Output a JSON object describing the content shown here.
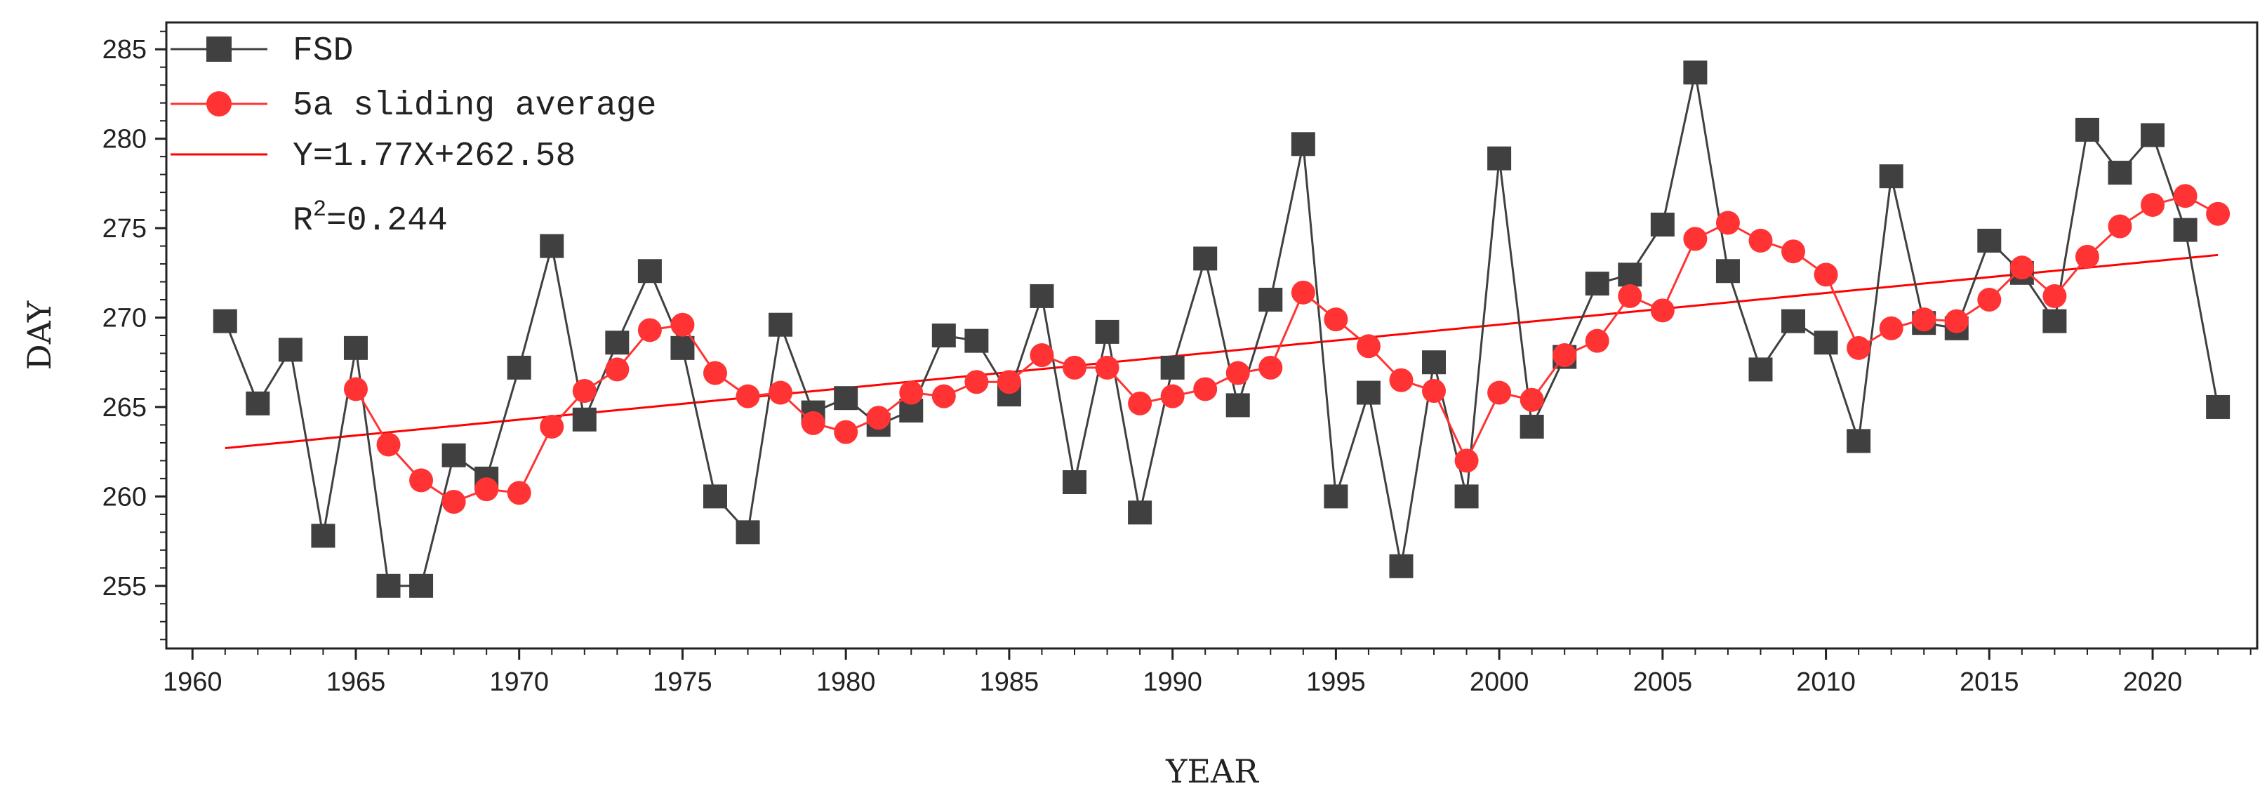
{
  "chart_data": {
    "type": "line",
    "title": "",
    "xlabel": "YEAR",
    "ylabel": "DAY",
    "xlim": [
      1959.2,
      2023.2
    ],
    "ylim": [
      251.5,
      286.5
    ],
    "x_ticks": [
      1960,
      1965,
      1970,
      1975,
      1980,
      1985,
      1990,
      1995,
      2000,
      2005,
      2010,
      2015,
      2020
    ],
    "y_ticks": [
      255,
      260,
      265,
      270,
      275,
      280,
      285
    ],
    "grid": false,
    "legend_position": "top-left",
    "x": [
      1961,
      1962,
      1963,
      1964,
      1965,
      1966,
      1967,
      1968,
      1969,
      1970,
      1971,
      1972,
      1973,
      1974,
      1975,
      1976,
      1977,
      1978,
      1979,
      1980,
      1981,
      1982,
      1983,
      1984,
      1985,
      1986,
      1987,
      1988,
      1989,
      1990,
      1991,
      1992,
      1993,
      1994,
      1995,
      1996,
      1997,
      1998,
      1999,
      2000,
      2001,
      2002,
      2003,
      2004,
      2005,
      2006,
      2007,
      2008,
      2009,
      2010,
      2011,
      2012,
      2013,
      2014,
      2015,
      2016,
      2017,
      2018,
      2019,
      2020,
      2021,
      2022
    ],
    "series": [
      {
        "name": "FSD",
        "color": "#404040",
        "marker": "square",
        "values": [
          269.8,
          265.2,
          268.2,
          257.8,
          268.3,
          255.0,
          255.0,
          262.3,
          261.0,
          267.2,
          274.0,
          264.3,
          268.6,
          272.6,
          268.3,
          260.0,
          258.0,
          269.6,
          264.7,
          265.5,
          264.0,
          264.8,
          269.0,
          268.7,
          265.7,
          271.2,
          260.8,
          269.2,
          259.1,
          267.2,
          273.3,
          265.1,
          271.0,
          279.7,
          260.0,
          265.8,
          256.1,
          267.5,
          260.0,
          278.9,
          263.9,
          267.8,
          271.9,
          272.4,
          275.2,
          283.7,
          272.6,
          267.1,
          269.8,
          268.6,
          263.1,
          277.9,
          269.7,
          269.4,
          274.3,
          272.5,
          269.8,
          280.5,
          278.1,
          280.2,
          274.9,
          265.0
        ]
      },
      {
        "name": "5a sliding average",
        "color": "#ff3333",
        "marker": "circle",
        "x": [
          1965,
          1966,
          1967,
          1968,
          1969,
          1970,
          1971,
          1972,
          1973,
          1974,
          1975,
          1976,
          1977,
          1978,
          1979,
          1980,
          1981,
          1982,
          1983,
          1984,
          1985,
          1986,
          1987,
          1988,
          1989,
          1990,
          1991,
          1992,
          1993,
          1994,
          1995,
          1996,
          1997,
          1998,
          1999,
          2000,
          2001,
          2002,
          2003,
          2004,
          2005,
          2006,
          2007,
          2008,
          2009,
          2010,
          2011,
          2012,
          2013,
          2014,
          2015,
          2016,
          2017,
          2018,
          2019,
          2020,
          2021,
          2022
        ],
        "values": [
          266.0,
          262.9,
          260.9,
          259.7,
          260.4,
          260.2,
          263.9,
          265.9,
          267.1,
          269.3,
          269.6,
          266.9,
          265.6,
          265.8,
          264.1,
          263.6,
          264.4,
          265.8,
          265.6,
          266.4,
          266.4,
          267.9,
          267.2,
          267.2,
          265.2,
          265.6,
          266.0,
          266.9,
          267.2,
          271.4,
          269.9,
          268.4,
          266.5,
          265.9,
          262.0,
          265.8,
          265.4,
          267.9,
          268.7,
          271.2,
          270.4,
          274.4,
          275.3,
          274.3,
          273.7,
          272.4,
          268.3,
          269.4,
          269.9,
          269.8,
          271.0,
          272.8,
          271.2,
          273.4,
          275.1,
          276.3,
          276.8,
          275.8
        ]
      },
      {
        "name": "Y=1.77X+262.58",
        "color": "#ff0000",
        "type": "trend",
        "start": [
          1961,
          262.7
        ],
        "end": [
          2022,
          273.5
        ]
      }
    ],
    "annotations": {
      "r2_prefix": "R",
      "r2_sup": "2",
      "r2_value": "=0.244"
    }
  }
}
